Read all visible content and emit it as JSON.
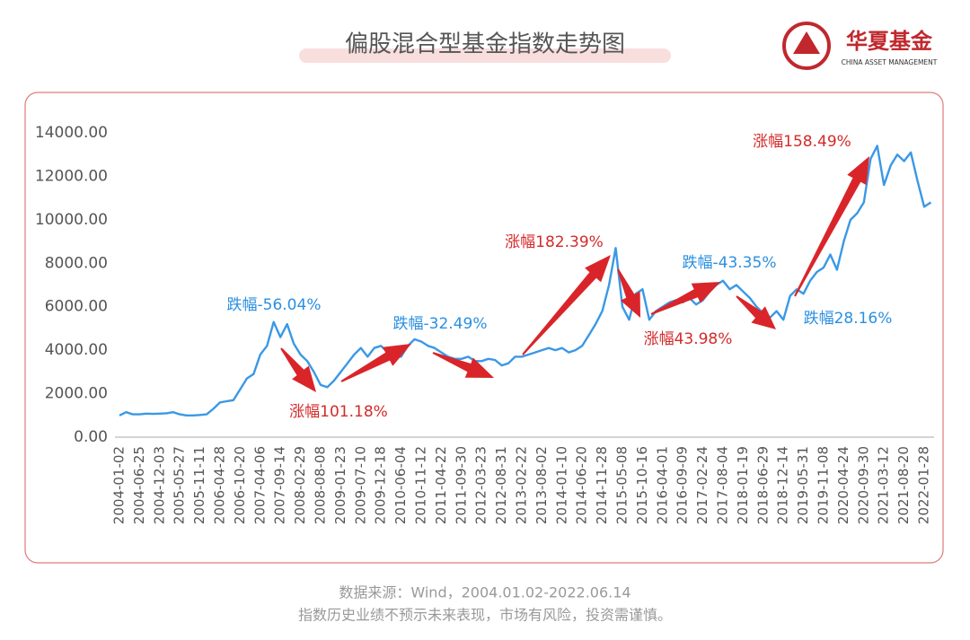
{
  "chart_data": {
    "type": "line",
    "title": "偏股混合型基金指数走势图",
    "brand": {
      "name": "华夏基金",
      "english": "CHINA ASSET MANAGEMENT"
    },
    "source": "数据来源：Wind，2004.01.02-2022.06.14",
    "disclaimer": "指数历史业绩不预示未来表现，市场有风险，投资需谨慎。",
    "categories": [
      "2004-01-02",
      null,
      null,
      "2004-06-25",
      null,
      null,
      "2004-12-03",
      null,
      null,
      "2005-05-27",
      null,
      null,
      "2005-11-11",
      null,
      null,
      "2006-04-28",
      null,
      null,
      "2006-10-20",
      null,
      null,
      "2007-04-06",
      null,
      null,
      "2007-09-14",
      null,
      null,
      "2008-02-29",
      null,
      null,
      "2008-08-08",
      null,
      null,
      "2009-01-23",
      null,
      null,
      "2009-07-10",
      null,
      null,
      "2009-12-18",
      null,
      null,
      "2010-06-04",
      null,
      null,
      "2010-11-12",
      null,
      null,
      "2011-04-22",
      null,
      null,
      "2011-09-30",
      null,
      null,
      "2012-03-23",
      null,
      null,
      "2012-08-31",
      null,
      null,
      "2013-02-22",
      null,
      null,
      "2013-08-02",
      null,
      null,
      "2014-01-10",
      null,
      null,
      "2014-06-20",
      null,
      null,
      "2014-11-28",
      null,
      null,
      "2015-05-08",
      null,
      null,
      "2015-10-16",
      null,
      null,
      "2016-04-01",
      null,
      null,
      "2016-09-09",
      null,
      null,
      "2017-02-24",
      null,
      null,
      "2017-08-04",
      null,
      null,
      "2018-01-19",
      null,
      null,
      "2018-06-29",
      null,
      null,
      "2018-12-14",
      null,
      null,
      "2019-05-31",
      null,
      null,
      "2019-11-08",
      null,
      null,
      "2020-04-24",
      null,
      null,
      "2020-09-30",
      null,
      null,
      "2021-03-12",
      null,
      null,
      "2021-08-20",
      null,
      null,
      "2022-01-28",
      null
    ],
    "series": [
      {
        "color": "#3a98e6",
        "values": [
          1000,
          1150,
          1050,
          1050,
          1080,
          1070,
          1080,
          1100,
          1150,
          1050,
          1000,
          1000,
          1020,
          1050,
          1300,
          1600,
          1650,
          1700,
          2200,
          2700,
          2900,
          3800,
          4200,
          5300,
          4600,
          5200,
          4300,
          3800,
          3500,
          3000,
          2400,
          2300,
          2600,
          3000,
          3400,
          3800,
          4100,
          3700,
          4100,
          4200,
          3900,
          3700,
          3700,
          4200,
          4500,
          4400,
          4200,
          4100,
          3900,
          3700,
          3600,
          3600,
          3700,
          3500,
          3500,
          3600,
          3550,
          3300,
          3400,
          3700,
          3700,
          3800,
          3900,
          4000,
          4100,
          4000,
          4100,
          3900,
          4000,
          4200,
          4700,
          5200,
          5800,
          7000,
          8700,
          6000,
          5400,
          6600,
          6800,
          5400,
          5800,
          6000,
          6200,
          6300,
          6200,
          6400,
          6100,
          6300,
          6700,
          7000,
          7200,
          6800,
          7000,
          6700,
          6400,
          6000,
          5700,
          5500,
          5800,
          5400,
          6500,
          6800,
          6600,
          7200,
          7600,
          7800,
          8400,
          7700,
          9000,
          10000,
          10300,
          10800,
          12800,
          13400,
          11600,
          12500,
          13000,
          12700,
          13100,
          11800,
          10600,
          10800
        ]
      }
    ],
    "ylim": [
      0,
      14000
    ],
    "yticks": [
      {
        "value": 0,
        "label": "0.00"
      },
      {
        "value": 2000,
        "label": "2000.00"
      },
      {
        "value": 4000,
        "label": "4000.00"
      },
      {
        "value": 6000,
        "label": "6000.00"
      },
      {
        "value": 8000,
        "label": "8000.00"
      },
      {
        "value": 10000,
        "label": "10000.00"
      },
      {
        "value": 12000,
        "label": "12000.00"
      },
      {
        "value": 14000,
        "label": "14000.00"
      }
    ],
    "annotations": [
      {
        "text": "跌幅-56.04%",
        "color": "#2b8fe0"
      },
      {
        "text": "涨幅101.18%",
        "color": "#d42a2a"
      },
      {
        "text": "跌幅-32.49%",
        "color": "#2b8fe0"
      },
      {
        "text": "涨幅182.39%",
        "color": "#d42a2a"
      },
      {
        "text": "跌幅-43.35%",
        "color": "#2b8fe0"
      },
      {
        "text": "涨幅43.98%",
        "color": "#d42a2a"
      },
      {
        "text": "跌幅28.16%",
        "color": "#2b8fe0"
      },
      {
        "text": "涨幅158.49%",
        "color": "#d42a2a"
      }
    ]
  }
}
